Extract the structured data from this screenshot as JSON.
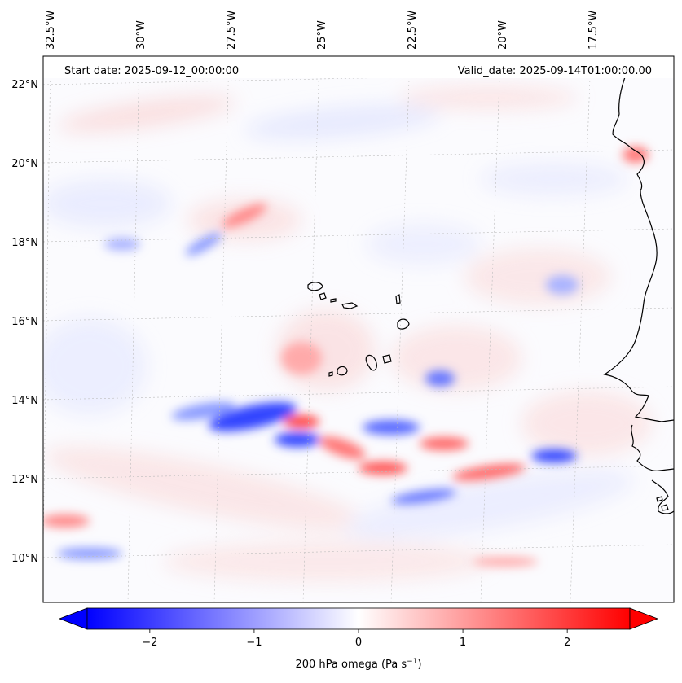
{
  "header": {
    "start_date": "Start date: 2025-09-12_00:00:00",
    "valid_date": "Valid_date: 2025-09-14T01:00:00.00"
  },
  "map": {
    "lon_range": [
      -32.6,
      -15.3
    ],
    "lat_range": [
      8.8,
      22.8
    ],
    "lon_ticks": [
      {
        "value": -32.5,
        "label": "32.5°W"
      },
      {
        "value": -30.0,
        "label": "30°W"
      },
      {
        "value": -27.5,
        "label": "27.5°W"
      },
      {
        "value": -25.0,
        "label": "25°W"
      },
      {
        "value": -22.5,
        "label": "22.5°W"
      },
      {
        "value": -20.0,
        "label": "20°W"
      },
      {
        "value": -17.5,
        "label": "17.5°W"
      }
    ],
    "lat_ticks": [
      {
        "value": 22,
        "label": "22°N"
      },
      {
        "value": 20,
        "label": "20°N"
      },
      {
        "value": 18,
        "label": "18°N"
      },
      {
        "value": 16,
        "label": "16°N"
      },
      {
        "value": 14,
        "label": "14°N"
      },
      {
        "value": 12,
        "label": "12°N"
      },
      {
        "value": 10,
        "label": "10°N"
      }
    ],
    "gridlines": true,
    "field_colors": {
      "negative": "#0000ff",
      "zero": "#ffffff",
      "positive": "#ff0000"
    }
  },
  "colorbar": {
    "min": -2.6,
    "max": 2.6,
    "ticks": [
      {
        "value": -2,
        "label": "−2"
      },
      {
        "value": -1,
        "label": "−1"
      },
      {
        "value": 0,
        "label": "0"
      },
      {
        "value": 1,
        "label": "1"
      },
      {
        "value": 2,
        "label": "2"
      }
    ],
    "label": "200 hPa omega (Pa s",
    "label_exp": "−1",
    "label_end": ")",
    "extend": "both"
  }
}
